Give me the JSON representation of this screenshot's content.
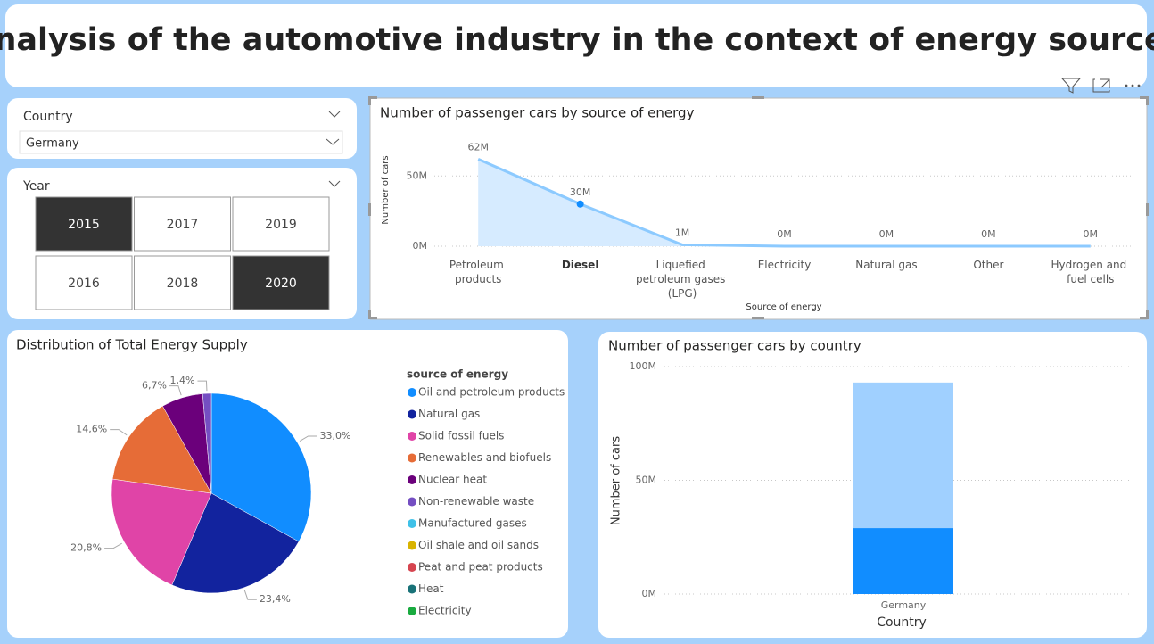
{
  "title": "Analysis of the automotive industry in the context of energy sources",
  "slicers": {
    "country": {
      "label": "Country",
      "value": "Germany"
    },
    "year": {
      "label": "Year",
      "options": [
        "2015",
        "2017",
        "2019",
        "2016",
        "2018",
        "2020"
      ],
      "selected": [
        "2015",
        "2020"
      ]
    }
  },
  "chart_data": [
    {
      "type": "area",
      "title": "Number of passenger cars by source of energy",
      "x_label": "Source of energy",
      "y_label": "Number of cars",
      "categories": [
        "Petroleum products",
        "Diesel",
        "Liquefied petroleum gases (LPG)",
        "Electricity",
        "Natural gas",
        "Other",
        "Hydrogen and fuel cells"
      ],
      "values": [
        62000000,
        30000000,
        1000000,
        0,
        0,
        0,
        0
      ],
      "value_labels": [
        "62M",
        "30M",
        "1M",
        "0M",
        "0M",
        "0M",
        "0M"
      ],
      "highlight": 1,
      "color": "#8ccaff",
      "fill": "#d6ebff",
      "highlight_color": "#118dff",
      "ylim": [
        0,
        80000000
      ],
      "yticks": [
        {
          "value": 0,
          "label": "0M"
        },
        {
          "value": 50000000,
          "label": "50M"
        }
      ],
      "grid": true
    },
    {
      "type": "pie",
      "title": "Distribution of Total Energy Supply",
      "legend_title": "source of energy",
      "categories": [
        "Oil and petroleum products",
        "Natural gas",
        "Solid fossil fuels",
        "Renewables and biofuels",
        "Nuclear heat",
        "Non-renewable waste",
        "Manufactured gases",
        "Oil shale and oil sands",
        "Peat and peat products",
        "Heat",
        "Electricity"
      ],
      "values": [
        33.0,
        23.4,
        20.8,
        14.6,
        6.7,
        1.4,
        0,
        0,
        0,
        0,
        0
      ],
      "value_labels": [
        "33,0%",
        "23,4%",
        "20,8%",
        "14,6%",
        "6,7%",
        "1,4%",
        null,
        null,
        null,
        null,
        null
      ],
      "colors": [
        "#118dff",
        "#12239e",
        "#e044a7",
        "#e66c37",
        "#6b007b",
        "#744ec2",
        "#3fc1e8",
        "#d9b300",
        "#d64550",
        "#197278",
        "#1aab40"
      ]
    },
    {
      "type": "stacked_bar",
      "title": "Number of passenger cars by country",
      "x_label": "Country",
      "y_label": "Number of cars",
      "categories": [
        "Germany"
      ],
      "series": [
        {
          "color": "#118dff",
          "values": [
            29000000
          ]
        },
        {
          "color": "#a0d0ff",
          "values": [
            64000000
          ]
        }
      ],
      "ylim": [
        0,
        100000000
      ],
      "yticks": [
        {
          "value": 0,
          "label": "0M"
        },
        {
          "value": 50000000,
          "label": "50M"
        },
        {
          "value": 100000000,
          "label": "100M"
        }
      ],
      "grid": true
    }
  ]
}
